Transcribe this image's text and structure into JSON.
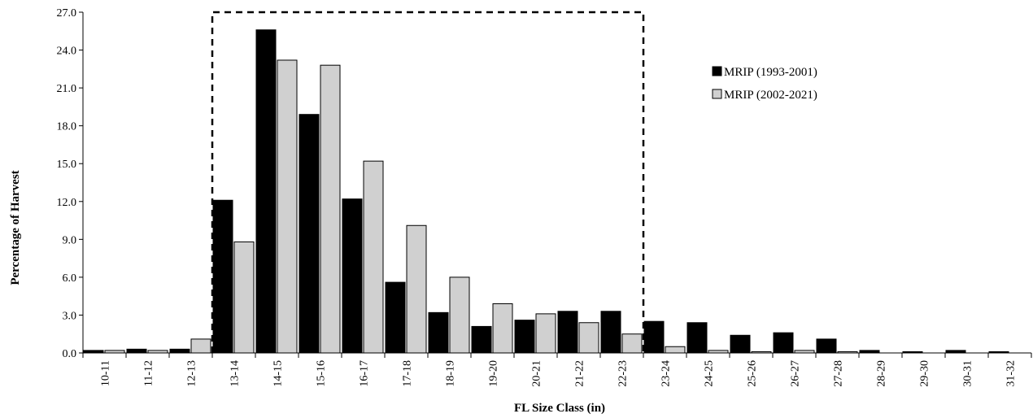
{
  "chart_data": {
    "type": "bar",
    "title": "",
    "xlabel": "FL Size Class (in)",
    "ylabel": "Percentage of Harvest",
    "ylim": [
      0,
      27
    ],
    "yticks": [
      "0.0",
      "3.0",
      "6.0",
      "9.0",
      "12.0",
      "15.0",
      "18.0",
      "21.0",
      "24.0",
      "27.0"
    ],
    "categories": [
      "10-11",
      "11-12",
      "12-13",
      "13-14",
      "14-15",
      "15-16",
      "16-17",
      "17-18",
      "18-19",
      "19-20",
      "20-21",
      "21-22",
      "22-23",
      "23-24",
      "24-25",
      "25-26",
      "26-27",
      "27-28",
      "28-29",
      "29-30",
      "30-31",
      "31-32"
    ],
    "series": [
      {
        "name": "MRIP (1993-2001)",
        "color": "#000000",
        "values": [
          0.2,
          0.3,
          0.3,
          12.1,
          25.6,
          18.9,
          12.2,
          5.6,
          3.2,
          2.1,
          2.6,
          3.3,
          3.3,
          2.5,
          2.4,
          1.4,
          1.6,
          1.1,
          0.2,
          0.1,
          0.2,
          0.1
        ]
      },
      {
        "name": "MRIP (2002-2021)",
        "color": "#d0d0d0",
        "values": [
          0.2,
          0.2,
          1.1,
          8.8,
          23.2,
          22.8,
          15.2,
          10.1,
          6.0,
          3.9,
          3.1,
          2.4,
          1.5,
          0.5,
          0.2,
          0.1,
          0.2,
          0.1,
          0.0,
          0.0,
          0.0,
          0.0
        ]
      }
    ],
    "grid": false,
    "legend": "top-right",
    "annotation": {
      "type": "dashed-box",
      "from_category": "13-14",
      "to_category": "22-23",
      "top": 27
    }
  }
}
